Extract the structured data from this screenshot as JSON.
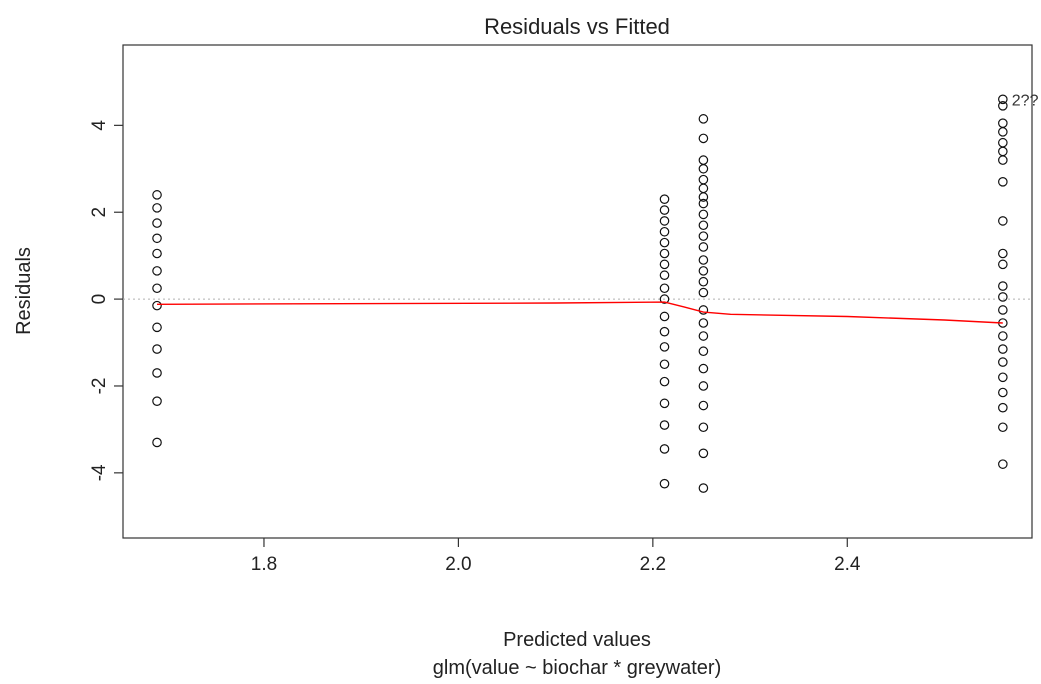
{
  "chart_data": {
    "type": "scatter",
    "title": "Residuals vs Fitted",
    "xlabel": "Predicted values",
    "sublabel": "glm(value ~ biochar * greywater)",
    "ylabel": "Residuals",
    "xlim": [
      1.655,
      2.59
    ],
    "ylim": [
      -5.5,
      5.85
    ],
    "xticks": [
      1.8,
      2.0,
      2.2,
      2.4
    ],
    "xtick_labels": [
      "1.8",
      "2.0",
      "2.2",
      "2.4"
    ],
    "yticks": [
      -4,
      -2,
      0,
      2,
      4
    ],
    "ytick_labels": [
      "-4",
      "-2",
      "0",
      "2",
      "4"
    ],
    "reference_line_y": 0,
    "points": [
      {
        "x": 1.69,
        "ys": [
          2.4,
          2.1,
          1.75,
          1.4,
          1.05,
          0.65,
          0.25,
          -0.15,
          -0.65,
          -1.15,
          -1.7,
          -2.35,
          -3.3
        ]
      },
      {
        "x": 2.212,
        "ys": [
          2.3,
          2.05,
          1.8,
          1.55,
          1.3,
          1.05,
          0.8,
          0.55,
          0.25,
          0.0,
          -0.4,
          -0.75,
          -1.1,
          -1.5,
          -1.9,
          -2.4,
          -2.9,
          -3.45,
          -4.25
        ]
      },
      {
        "x": 2.252,
        "ys": [
          4.15,
          3.7,
          3.2,
          3.0,
          2.75,
          2.55,
          2.35,
          2.2,
          1.95,
          1.7,
          1.45,
          1.2,
          0.9,
          0.65,
          0.4,
          0.15,
          -0.25,
          -0.55,
          -0.85,
          -1.2,
          -1.6,
          -2.0,
          -2.45,
          -2.95,
          -3.55,
          -4.35
        ]
      },
      {
        "x": 2.56,
        "ys": [
          4.6,
          4.45,
          4.05,
          3.85,
          3.6,
          3.4,
          3.2,
          2.7,
          1.8,
          1.05,
          0.8,
          0.3,
          0.05,
          -0.25,
          -0.55,
          -0.85,
          -1.15,
          -1.45,
          -1.8,
          -2.15,
          -2.5,
          -2.95,
          -3.8
        ]
      }
    ],
    "smooth_line": {
      "color": "#ff0000",
      "x": [
        1.69,
        2.1,
        2.212,
        2.232,
        2.252,
        2.28,
        2.4,
        2.5,
        2.56
      ],
      "y": [
        -0.12,
        -0.09,
        -0.07,
        -0.18,
        -0.3,
        -0.35,
        -0.4,
        -0.48,
        -0.55
      ]
    },
    "annotation": {
      "text": "2??",
      "x": 2.562,
      "y": 4.6
    },
    "grid": false,
    "point_style": "open-circle"
  }
}
